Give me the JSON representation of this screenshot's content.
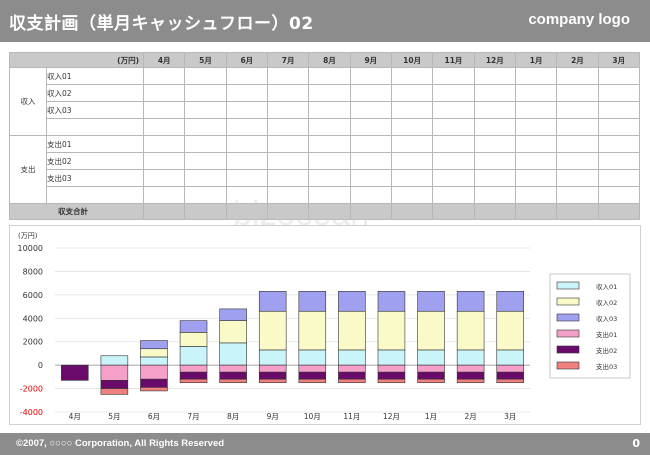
{
  "header": {
    "title": "収支計画（単月キャッシュフロー）02",
    "logo": "company logo"
  },
  "table": {
    "unit": "(万円)",
    "months": [
      "4月",
      "5月",
      "6月",
      "7月",
      "8月",
      "9月",
      "10月",
      "11月",
      "12月",
      "1月",
      "2月",
      "3月"
    ],
    "groups": [
      {
        "label": "収入",
        "items": [
          "収入01",
          "収入02",
          "収入03",
          ""
        ]
      },
      {
        "label": "支出",
        "items": [
          "支出01",
          "支出02",
          "支出03",
          ""
        ]
      }
    ],
    "total_label": "収支合計"
  },
  "chart_data": {
    "type": "bar",
    "stacked": true,
    "unit_label": "(万円)",
    "categories": [
      "4月",
      "5月",
      "6月",
      "7月",
      "8月",
      "9月",
      "10月",
      "11月",
      "12月",
      "1月",
      "2月",
      "3月"
    ],
    "ylim": [
      -4000,
      10000
    ],
    "yticks": [
      "10000",
      "8000",
      "6000",
      "4000",
      "2000",
      "0",
      "-2000",
      "-4000"
    ],
    "grid": true,
    "legend_position": "right",
    "series": [
      {
        "name": "収入01",
        "color": "#c8f4fa",
        "values": [
          0,
          800,
          700,
          1600,
          1900,
          1300,
          1300,
          1300,
          1300,
          1300,
          1300,
          1300
        ]
      },
      {
        "name": "収入02",
        "color": "#fafac8",
        "values": [
          0,
          0,
          700,
          1200,
          1900,
          3300,
          3300,
          3300,
          3300,
          3300,
          3300,
          3300
        ]
      },
      {
        "name": "収入03",
        "color": "#a0a0f0",
        "values": [
          0,
          0,
          700,
          1000,
          1000,
          1700,
          1700,
          1700,
          1700,
          1700,
          1700,
          1700
        ]
      },
      {
        "name": "支出01",
        "color": "#f5a0c8",
        "values": [
          0,
          -1300,
          -1200,
          -600,
          -600,
          -600,
          -600,
          -600,
          -600,
          -600,
          -600,
          -600
        ]
      },
      {
        "name": "支出02",
        "color": "#6a0a6a",
        "values": [
          -1300,
          -700,
          -700,
          -600,
          -600,
          -600,
          -600,
          -600,
          -600,
          -600,
          -600,
          -600
        ]
      },
      {
        "name": "支出03",
        "color": "#f08080",
        "values": [
          0,
          -500,
          -300,
          -300,
          -300,
          -300,
          -300,
          -300,
          -300,
          -300,
          -300,
          -300
        ]
      }
    ]
  },
  "footer": {
    "copyright": "©2007, ○○○○ Corporation, All Rights Reserved",
    "page": "0"
  }
}
